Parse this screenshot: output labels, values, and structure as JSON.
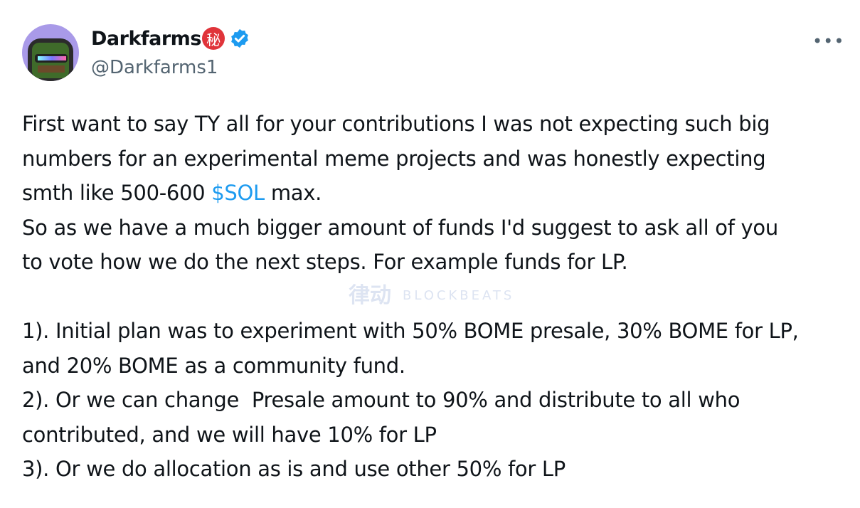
{
  "author": {
    "display_name": "Darkfarms",
    "seal_char": "秘",
    "handle": "@Darkfarms1",
    "verified": true,
    "verified_color": "#1d9bf0",
    "avatar_bg": "#a99ae8"
  },
  "more_label": "•••",
  "tweet": {
    "lines": [
      {
        "pre": "First want to say TY all for your contributions I was not expecting such big",
        "link": "",
        "post": ""
      },
      {
        "pre": "numbers for an experimental meme projects and was honestly expecting",
        "link": "",
        "post": ""
      },
      {
        "pre": "smth like 500-600 ",
        "link": "$SOL",
        "post": " max."
      },
      {
        "pre": "So as we have a much bigger amount of funds I'd suggest to ask all of you",
        "link": "",
        "post": ""
      },
      {
        "pre": "to vote how we do the next steps. For example funds for LP.",
        "link": "",
        "post": ""
      },
      {
        "pre": "",
        "link": "",
        "post": ""
      },
      {
        "pre": "1). Initial plan was to experiment with 50% BOME presale, 30% BOME for LP,",
        "link": "",
        "post": ""
      },
      {
        "pre": "and 20% BOME as a community fund.",
        "link": "",
        "post": ""
      },
      {
        "pre": "2). Or we can change  Presale amount to 90% and distribute to all who",
        "link": "",
        "post": ""
      },
      {
        "pre": "contributed, and we will have 10% for LP",
        "link": "",
        "post": ""
      },
      {
        "pre": "3). Or we do allocation as is and use other 50% for LP",
        "link": "",
        "post": ""
      }
    ]
  },
  "watermark": {
    "cn": "律动",
    "en": "BLOCKBEATS"
  }
}
